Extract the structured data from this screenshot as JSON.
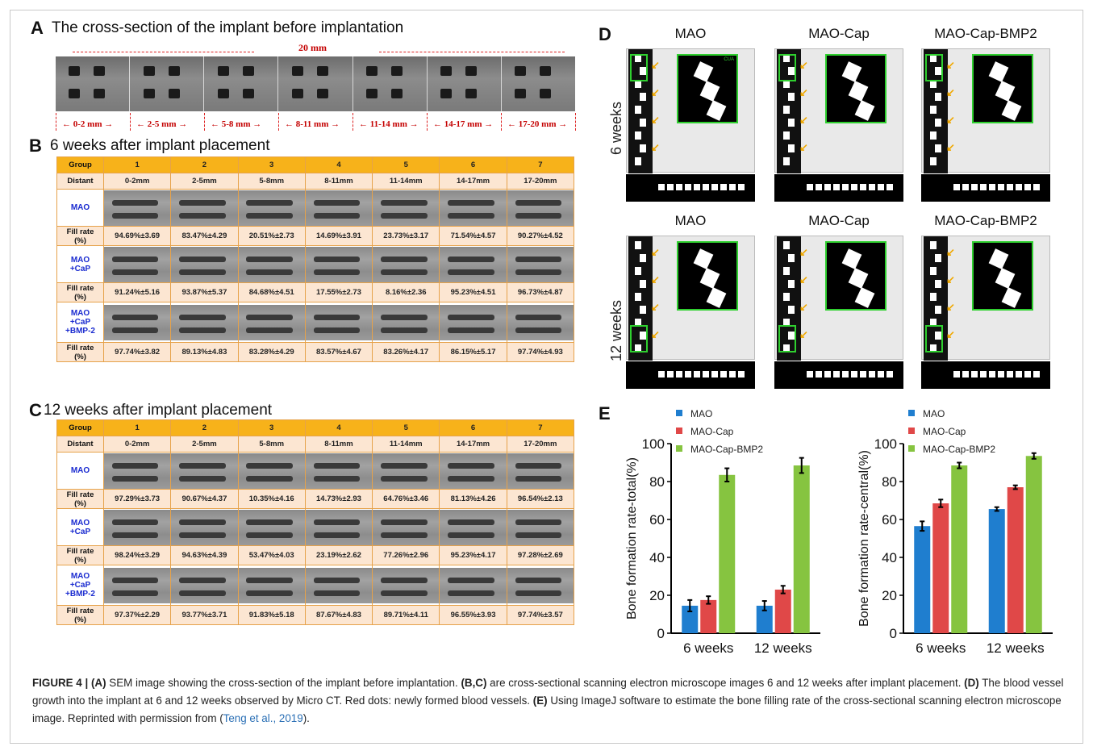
{
  "panelA": {
    "letter": "A",
    "title": "The cross-section of the implant before implantation",
    "total": "20 mm",
    "segments": [
      "0-2 mm",
      "2-5 mm",
      "5-8 mm",
      "8-11 mm",
      "11-14 mm",
      "14-17 mm",
      "17-20 mm"
    ]
  },
  "panelB": {
    "letter": "B",
    "title": "6 weeks after implant placement",
    "header": [
      "Group",
      "1",
      "2",
      "3",
      "4",
      "5",
      "6",
      "7"
    ],
    "distant": [
      "Distant",
      "0-2mm",
      "2-5mm",
      "5-8mm",
      "8-11mm",
      "11-14mm",
      "14-17mm",
      "17-20mm"
    ],
    "groups": [
      {
        "name": "MAO",
        "fill_label": "Fill rate\n(%)",
        "fill": [
          "94.69%±3.69",
          "83.47%±4.29",
          "20.51%±2.73",
          "14.69%±3.91",
          "23.73%±3.17",
          "71.54%±4.57",
          "90.27%±4.52"
        ]
      },
      {
        "name": "MAO\n+CaP",
        "fill_label": "Fill rate\n(%)",
        "fill": [
          "91.24%±5.16",
          "93.87%±5.37",
          "84.68%±4.51",
          "17.55%±2.73",
          "8.16%±2.36",
          "95.23%±4.51",
          "96.73%±4.87"
        ]
      },
      {
        "name": "MAO\n+CaP\n+BMP-2",
        "fill_label": "Fill rate\n(%)",
        "fill": [
          "97.74%±3.82",
          "89.13%±4.83",
          "83.28%±4.29",
          "83.57%±4.67",
          "83.26%±4.17",
          "86.15%±5.17",
          "97.74%±4.93"
        ]
      }
    ]
  },
  "panelC": {
    "letter": "C",
    "title": "12 weeks after implant placement",
    "header": [
      "Group",
      "1",
      "2",
      "3",
      "4",
      "5",
      "6",
      "7"
    ],
    "distant": [
      "Distant",
      "0-2mm",
      "2-5mm",
      "5-8mm",
      "8-11mm",
      "11-14mm",
      "14-17mm",
      "17-20mm"
    ],
    "groups": [
      {
        "name": "MAO",
        "fill_label": "Fill rate\n(%)",
        "fill": [
          "97.29%±3.73",
          "90.67%±4.37",
          "10.35%±4.16",
          "14.73%±2.93",
          "64.76%±3.46",
          "81.13%±4.26",
          "96.54%±2.13"
        ]
      },
      {
        "name": "MAO\n+CaP",
        "fill_label": "Fill rate\n(%)",
        "fill": [
          "98.24%±3.29",
          "94.63%±4.39",
          "53.47%±4.03",
          "23.19%±2.62",
          "77.26%±2.96",
          "95.23%±4.17",
          "97.28%±2.69"
        ]
      },
      {
        "name": "MAO\n+CaP\n+BMP-2",
        "fill_label": "Fill rate\n(%)",
        "fill": [
          "97.37%±2.29",
          "93.77%±3.71",
          "91.83%±5.18",
          "87.67%±4.83",
          "89.71%±4.11",
          "96.55%±3.93",
          "97.74%±3.57"
        ]
      }
    ]
  },
  "panelD": {
    "letter": "D",
    "columns": [
      "MAO",
      "MAO-Cap",
      "MAO-Cap-BMP2"
    ],
    "rows": [
      "6 weeks",
      "12 weeks"
    ],
    "tag": "CUA"
  },
  "panelE": {
    "letter": "E"
  },
  "chart_data": [
    {
      "type": "bar",
      "categories": [
        "6 weeks",
        "12 weeks"
      ],
      "series": [
        {
          "name": "MAO",
          "values": [
            14.5,
            14.5
          ],
          "errors": [
            3,
            2.5
          ]
        },
        {
          "name": "MAO-Cap",
          "values": [
            17.5,
            23
          ],
          "errors": [
            2,
            2
          ]
        },
        {
          "name": "MAO-Cap-BMP2",
          "values": [
            83.5,
            88.5
          ],
          "errors": [
            3.5,
            4
          ]
        }
      ],
      "ylabel": "Bone formation rate-total(%)",
      "ylim": [
        0,
        100
      ],
      "yticks": [
        0,
        20,
        40,
        60,
        80,
        100
      ],
      "colors": [
        "#1f7ecf",
        "#e04848",
        "#86c440"
      ],
      "legend": "top-left"
    },
    {
      "type": "bar",
      "categories": [
        "6 weeks",
        "12 weeks"
      ],
      "series": [
        {
          "name": "MAO",
          "values": [
            56.5,
            65.5
          ],
          "errors": [
            2.5,
            1
          ]
        },
        {
          "name": "MAO-Cap",
          "values": [
            68.5,
            77
          ],
          "errors": [
            2,
            1
          ]
        },
        {
          "name": "MAO-Cap-BMP2",
          "values": [
            88.5,
            93.5
          ],
          "errors": [
            1.5,
            1.5
          ]
        }
      ],
      "ylabel": "Bone formation rate-central(%)",
      "ylim": [
        0,
        100
      ],
      "yticks": [
        0,
        20,
        40,
        60,
        80,
        100
      ],
      "colors": [
        "#1f7ecf",
        "#e04848",
        "#86c440"
      ],
      "legend": "top-left"
    }
  ],
  "caption": {
    "fig": "FIGURE 4 |",
    "a": "(A)",
    "a_text": " SEM image showing the cross-section of the implant before implantation. ",
    "bc": "(B,C)",
    "bc_text": " are cross-sectional scanning electron microscope images 6 and 12 weeks after implant placement. ",
    "d": "(D)",
    "d_text": " The blood vessel growth into the implant at 6 and 12 weeks observed by Micro CT. Red dots: newly formed blood vessels. ",
    "e": "(E)",
    "e_text": " Using ImageJ software to estimate the bone filling rate of the cross-sectional scanning electron microscope image. Reprinted with permission from (",
    "ref": "Teng et al., 2019",
    "end": ")."
  }
}
